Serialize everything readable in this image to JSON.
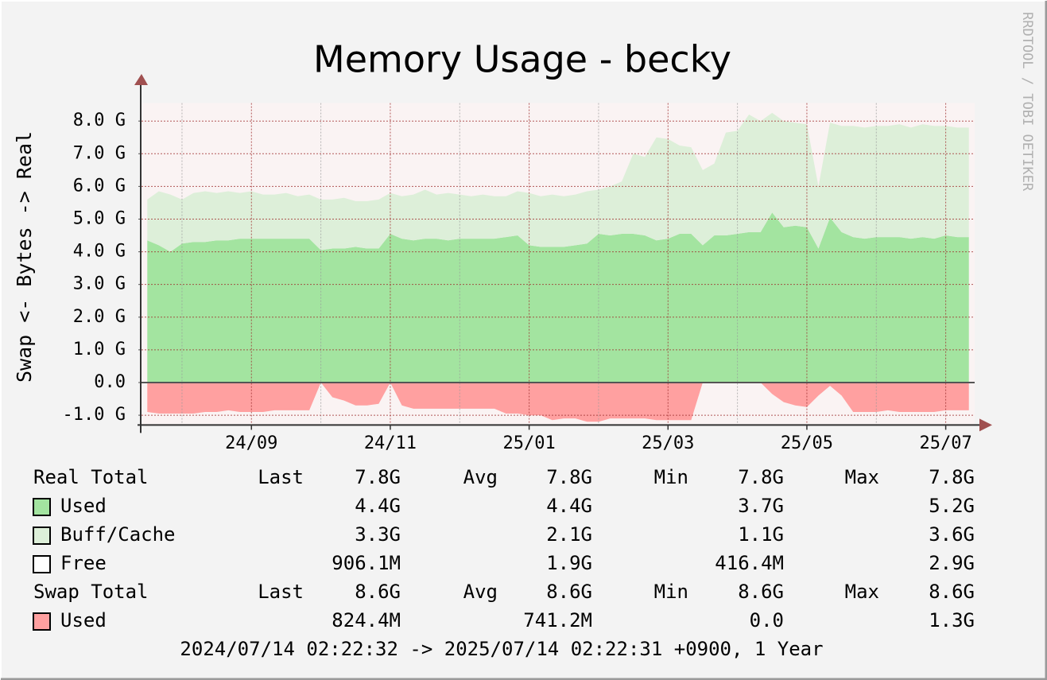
{
  "chart_data": {
    "type": "area",
    "title": "Memory Usage - becky",
    "ylabel": "Swap <-  Bytes -> Real",
    "watermark": "RRDTOOL / TOBI OETIKER",
    "footer": "2024/07/14 02:22:32 -> 2025/07/14 02:22:31 +0900, 1 Year",
    "categories": [
      null,
      null,
      null,
      null,
      null,
      null,
      null,
      null,
      null,
      "24/09",
      null,
      null,
      null,
      null,
      null,
      null,
      null,
      null,
      null,
      null,
      null,
      "24/11",
      null,
      null,
      null,
      null,
      null,
      null,
      null,
      null,
      null,
      null,
      null,
      "25/01",
      null,
      null,
      null,
      null,
      null,
      null,
      null,
      null,
      null,
      null,
      null,
      "25/03",
      null,
      null,
      null,
      null,
      null,
      null,
      null,
      null,
      null,
      null,
      null,
      "25/05",
      null,
      null,
      null,
      null,
      null,
      null,
      null,
      null,
      null,
      null,
      null,
      "25/07",
      null,
      null
    ],
    "ylim": [
      -1.3,
      8.55
    ],
    "yticks": [
      {
        "value": -1,
        "label": "-1.0 G"
      },
      {
        "value": 0,
        "label": "0.0"
      },
      {
        "value": 1,
        "label": "1.0 G"
      },
      {
        "value": 2,
        "label": "2.0 G"
      },
      {
        "value": 3,
        "label": "3.0 G"
      },
      {
        "value": 4,
        "label": "4.0 G"
      },
      {
        "value": 5,
        "label": "5.0 G"
      },
      {
        "value": 6,
        "label": "6.0 G"
      },
      {
        "value": 7,
        "label": "7.0 G"
      },
      {
        "value": 8,
        "label": "8.0 G"
      }
    ],
    "grid": true,
    "series": [
      {
        "name": "Used",
        "color": "#a3e4a0",
        "stack": true,
        "stats": [
          "4.4G",
          "4.4G",
          "3.7G",
          "5.2G"
        ],
        "values": [
          4.35,
          4.2,
          4.0,
          4.25,
          4.3,
          4.3,
          4.35,
          4.35,
          4.4,
          4.4,
          4.4,
          4.4,
          4.4,
          4.4,
          4.4,
          4.05,
          4.1,
          4.1,
          4.15,
          4.1,
          4.1,
          4.55,
          4.4,
          4.35,
          4.4,
          4.4,
          4.35,
          4.4,
          4.4,
          4.4,
          4.4,
          4.45,
          4.5,
          4.2,
          4.15,
          4.15,
          4.15,
          4.2,
          4.25,
          4.55,
          4.5,
          4.55,
          4.55,
          4.5,
          4.35,
          4.4,
          4.55,
          4.55,
          4.2,
          4.5,
          4.5,
          4.55,
          4.6,
          4.6,
          5.2,
          4.75,
          4.8,
          4.75,
          4.1,
          5.05,
          4.6,
          4.45,
          4.4,
          4.45,
          4.45,
          4.45,
          4.4,
          4.45,
          4.4,
          4.5,
          4.45,
          4.45
        ]
      },
      {
        "name": "Buff/Cache",
        "color": "#ddefd9",
        "stack": true,
        "stats": [
          "3.3G",
          "2.1G",
          "1.1G",
          "3.6G"
        ],
        "values": [
          1.25,
          1.65,
          1.75,
          1.35,
          1.5,
          1.55,
          1.45,
          1.5,
          1.4,
          1.45,
          1.35,
          1.35,
          1.4,
          1.3,
          1.35,
          1.55,
          1.5,
          1.55,
          1.4,
          1.45,
          1.5,
          1.25,
          1.3,
          1.4,
          1.5,
          1.35,
          1.45,
          1.35,
          1.3,
          1.35,
          1.3,
          1.25,
          1.35,
          1.6,
          1.55,
          1.6,
          1.55,
          1.55,
          1.6,
          1.35,
          1.5,
          1.6,
          2.45,
          2.4,
          3.15,
          3.05,
          2.7,
          2.65,
          2.3,
          2.2,
          3.15,
          3.15,
          3.6,
          3.4,
          3.05,
          3.25,
          3.15,
          3.15,
          1.9,
          2.9,
          3.25,
          3.4,
          3.4,
          3.4,
          3.4,
          3.45,
          3.4,
          3.45,
          3.45,
          3.35,
          3.35,
          3.35
        ]
      },
      {
        "name": "Used",
        "color": "#ffa0a0",
        "stack": false,
        "stats": [
          "824.4M",
          "741.2M",
          "0.0",
          "1.3G"
        ],
        "values": [
          -0.9,
          -0.95,
          -0.95,
          -0.95,
          -0.95,
          -0.9,
          -0.9,
          -0.85,
          -0.9,
          -0.9,
          -0.9,
          -0.85,
          -0.85,
          -0.85,
          -0.85,
          0,
          -0.45,
          -0.55,
          -0.7,
          -0.7,
          -0.65,
          0,
          -0.7,
          -0.8,
          -0.8,
          -0.8,
          -0.8,
          -0.8,
          -0.8,
          -0.8,
          -0.8,
          -0.95,
          -0.95,
          -1.0,
          -1.0,
          -1.15,
          -1.1,
          -1.1,
          -1.2,
          -1.2,
          -1.1,
          -1.1,
          -1.1,
          -1.1,
          -1.15,
          -1.15,
          -1.15,
          -1.15,
          0,
          0,
          0,
          0,
          0,
          0,
          -0.35,
          -0.6,
          -0.7,
          -0.75,
          -0.4,
          -0.1,
          -0.4,
          -0.9,
          -0.9,
          -0.9,
          -0.85,
          -0.9,
          -0.9,
          -0.9,
          -0.9,
          -0.85,
          -0.85,
          -0.85
        ]
      }
    ],
    "legend": {
      "stat_labels": [
        "Last",
        "Avg",
        "Min",
        "Max"
      ],
      "real_total": {
        "label": "Real Total",
        "stats": [
          "7.8G",
          "7.8G",
          "7.8G",
          "7.8G"
        ]
      },
      "free": {
        "label": "Free",
        "color": "#ffffff",
        "stats": [
          "906.1M",
          "1.9G",
          "416.4M",
          "2.9G"
        ]
      },
      "swap_total": {
        "label": "Swap Total",
        "stats": [
          "8.6G",
          "8.6G",
          "8.6G",
          "8.6G"
        ]
      }
    }
  }
}
